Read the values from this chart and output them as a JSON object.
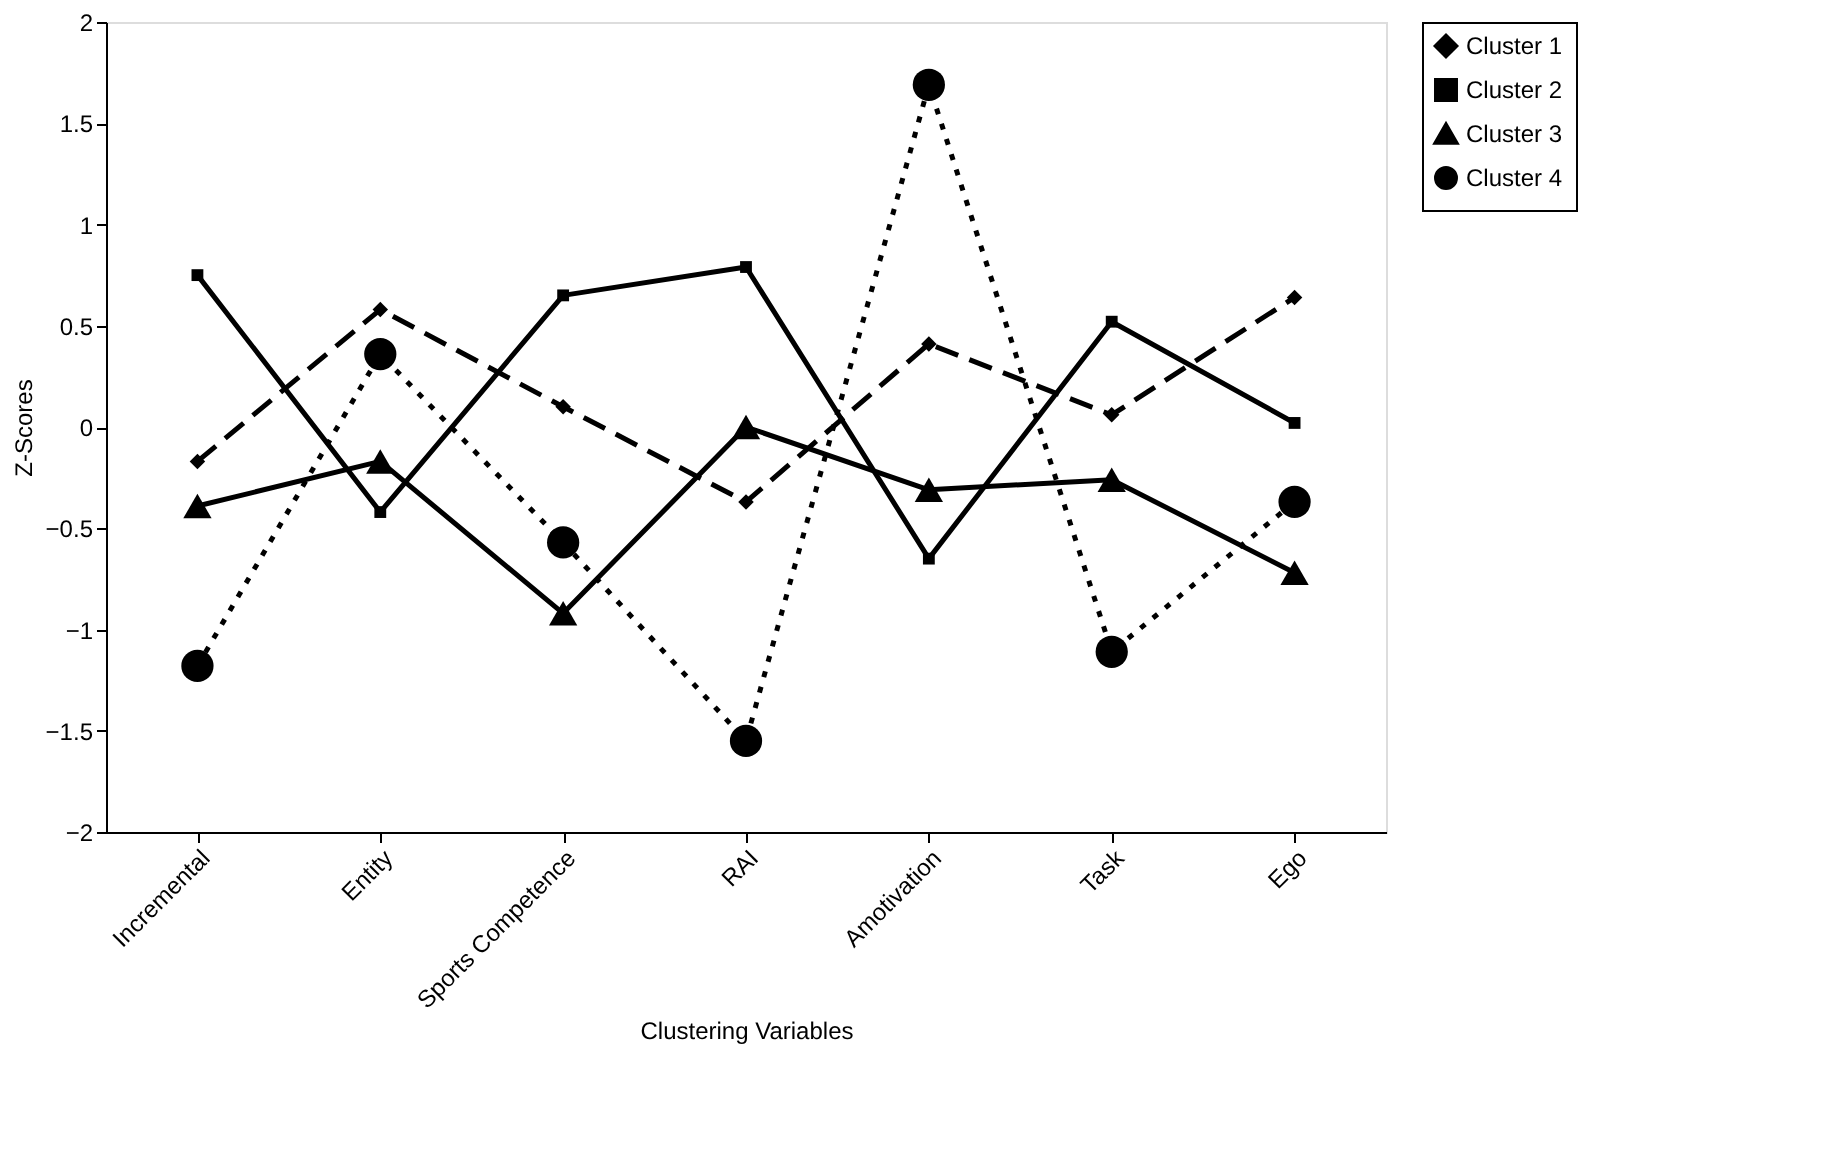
{
  "chart_data": {
    "type": "line",
    "xlabel": "Clustering Variables",
    "ylabel": "Z-Scores",
    "categories": [
      "Incremental",
      "Entity",
      "Sports Competence",
      "RAI",
      "Amotivation",
      "Task",
      "Ego"
    ],
    "series": [
      {
        "name": "Cluster 1",
        "color": "#000000",
        "marker": "diamond",
        "line_style": "dashed",
        "values": [
          -0.17,
          0.58,
          0.1,
          -0.37,
          0.41,
          0.06,
          0.64
        ]
      },
      {
        "name": "Cluster 2",
        "color": "#000000",
        "marker": "square",
        "line_style": "solid",
        "values": [
          0.75,
          -0.42,
          0.65,
          0.79,
          -0.65,
          0.52,
          0.02
        ]
      },
      {
        "name": "Cluster 3",
        "color": "#000000",
        "marker": "triangle",
        "line_style": "solid",
        "values": [
          -0.39,
          -0.17,
          -0.92,
          0.0,
          -0.31,
          -0.26,
          -0.72
        ]
      },
      {
        "name": "Cluster 4",
        "color": "#000000",
        "marker": "circle",
        "line_style": "dotted",
        "values": [
          -1.18,
          0.36,
          -0.57,
          -1.55,
          1.69,
          -1.11,
          -0.37
        ]
      }
    ],
    "ylim": [
      -2,
      2
    ],
    "yticks": [
      -2,
      -1.5,
      -1,
      -0.5,
      0,
      0.5,
      1,
      1.5,
      2
    ],
    "grid": false,
    "legend": "right"
  }
}
